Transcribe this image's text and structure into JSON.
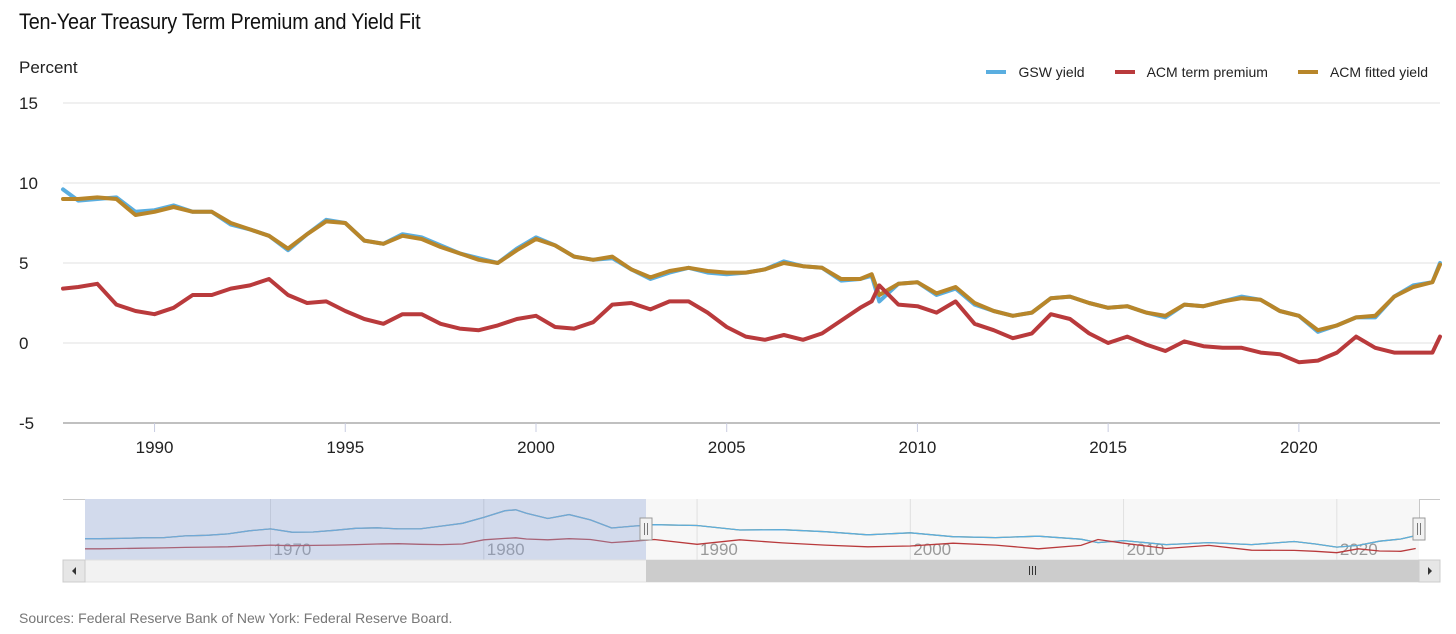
{
  "title": "Ten-Year Treasury Term Premium and Yield Fit",
  "source": "Sources: Federal Reserve Bank of New York: Federal Reserve Board.",
  "navigator": {
    "tick_labels": [
      "1970",
      "1980",
      "1990",
      "2000",
      "2010",
      "2020"
    ],
    "range_start": "1961",
    "range_end": "2023",
    "selected_start": 1987.6,
    "selected_end": 2023.7,
    "scroll_left_icon": "triangle-left",
    "scroll_right_icon": "triangle-right",
    "scroll_grip_icon": "grip-lines",
    "handle_icon": "grip-lines"
  },
  "chart_data": {
    "type": "line",
    "title": "Ten-Year Treasury Term Premium and Yield Fit",
    "xlabel": "",
    "ylabel": "Percent",
    "ylim": [
      -5,
      15
    ],
    "xlim": [
      1987.6,
      2023.7
    ],
    "yticks": [
      15,
      10,
      5,
      0,
      -5
    ],
    "xticks": [
      1990,
      1995,
      2000,
      2005,
      2010,
      2015,
      2020
    ],
    "grid": true,
    "legend": "top-right",
    "x": [
      1987.6,
      1988.0,
      1988.5,
      1989.0,
      1989.5,
      1990.0,
      1990.5,
      1991.0,
      1991.5,
      1992.0,
      1992.5,
      1993.0,
      1993.5,
      1994.0,
      1994.5,
      1995.0,
      1995.5,
      1996.0,
      1996.5,
      1997.0,
      1997.5,
      1998.0,
      1998.5,
      1999.0,
      1999.5,
      2000.0,
      2000.5,
      2001.0,
      2001.5,
      2002.0,
      2002.5,
      2003.0,
      2003.5,
      2004.0,
      2004.5,
      2005.0,
      2005.5,
      2006.0,
      2006.5,
      2007.0,
      2007.5,
      2008.0,
      2008.5,
      2008.8,
      2009.0,
      2009.5,
      2010.0,
      2010.5,
      2011.0,
      2011.5,
      2012.0,
      2012.5,
      2013.0,
      2013.5,
      2014.0,
      2014.5,
      2015.0,
      2015.5,
      2016.0,
      2016.5,
      2017.0,
      2017.5,
      2018.0,
      2018.5,
      2019.0,
      2019.5,
      2020.0,
      2020.5,
      2021.0,
      2021.5,
      2022.0,
      2022.5,
      2023.0,
      2023.5,
      2023.7
    ],
    "series": [
      {
        "name": "GSW yield",
        "color": "#5aaee0",
        "values": [
          9.6,
          8.9,
          9.0,
          9.1,
          8.2,
          8.3,
          8.6,
          8.2,
          8.2,
          7.4,
          7.1,
          6.7,
          5.8,
          6.8,
          7.7,
          7.5,
          6.4,
          6.2,
          6.8,
          6.6,
          6.1,
          5.6,
          5.3,
          5.0,
          5.9,
          6.6,
          6.1,
          5.4,
          5.2,
          5.3,
          4.6,
          4.0,
          4.4,
          4.7,
          4.4,
          4.3,
          4.4,
          4.6,
          5.1,
          4.8,
          4.7,
          3.9,
          4.0,
          4.2,
          2.6,
          3.7,
          3.8,
          3.0,
          3.4,
          2.4,
          2.0,
          1.7,
          1.9,
          2.8,
          2.9,
          2.5,
          2.2,
          2.3,
          1.9,
          1.6,
          2.4,
          2.3,
          2.6,
          2.9,
          2.7,
          2.0,
          1.7,
          0.7,
          1.1,
          1.6,
          1.6,
          2.9,
          3.6,
          3.8,
          5.0
        ]
      },
      {
        "name": "ACM term premium",
        "color": "#b93a3c",
        "values": [
          3.4,
          3.5,
          3.7,
          2.4,
          2.0,
          1.8,
          2.2,
          3.0,
          3.0,
          3.4,
          3.6,
          4.0,
          3.0,
          2.5,
          2.6,
          2.0,
          1.5,
          1.2,
          1.8,
          1.8,
          1.2,
          0.9,
          0.8,
          1.1,
          1.5,
          1.7,
          1.0,
          0.9,
          1.3,
          2.4,
          2.5,
          2.1,
          2.6,
          2.6,
          1.9,
          1.0,
          0.4,
          0.2,
          0.5,
          0.2,
          0.6,
          1.4,
          2.2,
          2.6,
          3.6,
          2.4,
          2.3,
          1.9,
          2.6,
          1.2,
          0.8,
          0.3,
          0.6,
          1.8,
          1.5,
          0.6,
          0.0,
          0.4,
          -0.1,
          -0.5,
          0.1,
          -0.2,
          -0.3,
          -0.3,
          -0.6,
          -0.7,
          -1.2,
          -1.1,
          -0.6,
          0.4,
          -0.3,
          -0.6,
          -0.6,
          -0.6,
          0.4
        ]
      },
      {
        "name": "ACM fitted yield",
        "color": "#b8862a",
        "values": [
          9.0,
          9.0,
          9.1,
          9.0,
          8.0,
          8.2,
          8.5,
          8.2,
          8.2,
          7.5,
          7.1,
          6.7,
          5.9,
          6.8,
          7.6,
          7.5,
          6.4,
          6.2,
          6.7,
          6.5,
          6.0,
          5.6,
          5.2,
          5.0,
          5.8,
          6.5,
          6.1,
          5.4,
          5.2,
          5.4,
          4.6,
          4.1,
          4.5,
          4.7,
          4.5,
          4.4,
          4.4,
          4.6,
          5.0,
          4.8,
          4.7,
          4.0,
          4.0,
          4.3,
          3.0,
          3.7,
          3.8,
          3.1,
          3.5,
          2.5,
          2.0,
          1.7,
          1.9,
          2.8,
          2.9,
          2.5,
          2.2,
          2.3,
          1.9,
          1.7,
          2.4,
          2.3,
          2.6,
          2.8,
          2.7,
          2.0,
          1.7,
          0.8,
          1.1,
          1.6,
          1.7,
          2.9,
          3.5,
          3.8,
          4.9
        ]
      }
    ]
  },
  "navigator_data": {
    "x": [
      1961.3,
      1962,
      1963,
      1964,
      1965,
      1966,
      1967,
      1968,
      1969,
      1970,
      1971,
      1972,
      1973,
      1974,
      1975,
      1976,
      1977,
      1978,
      1979,
      1980,
      1981,
      1981.5,
      1982,
      1983,
      1984,
      1985,
      1986,
      1987,
      1988,
      1990,
      1992,
      1994,
      1996,
      1998,
      2000,
      2002,
      2004,
      2006,
      2008,
      2008.8,
      2010,
      2012,
      2014,
      2016,
      2018,
      2019,
      2020,
      2021,
      2022,
      2023,
      2023.7
    ],
    "gsw": [
      3.9,
      3.9,
      4.0,
      4.2,
      4.3,
      4.9,
      5.1,
      5.6,
      6.7,
      7.4,
      6.2,
      6.3,
      6.9,
      7.6,
      7.8,
      7.4,
      7.4,
      8.4,
      9.4,
      11.5,
      13.9,
      14.2,
      13.0,
      11.1,
      12.5,
      10.6,
      7.7,
      8.4,
      8.9,
      8.6,
      7.0,
      7.1,
      6.4,
      5.3,
      6.0,
      4.6,
      4.3,
      4.8,
      3.7,
      2.5,
      3.2,
      1.8,
      2.5,
      1.8,
      2.9,
      2.0,
      0.9,
      1.5,
      3.0,
      3.8,
      5.0
    ],
    "tp": [
      0.3,
      0.3,
      0.4,
      0.5,
      0.6,
      0.8,
      0.9,
      1.0,
      1.3,
      1.6,
      1.4,
      1.5,
      1.6,
      1.8,
      2.0,
      2.1,
      1.9,
      1.8,
      2.0,
      3.5,
      4.0,
      4.2,
      3.8,
      3.5,
      3.9,
      3.6,
      2.5,
      3.0,
      3.6,
      1.9,
      3.5,
      2.4,
      1.6,
      1.0,
      1.3,
      2.3,
      1.6,
      0.3,
      1.5,
      3.6,
      2.3,
      0.4,
      1.5,
      -0.2,
      -0.3,
      -0.6,
      -1.1,
      0.3,
      -0.5,
      -0.6,
      0.4
    ]
  }
}
